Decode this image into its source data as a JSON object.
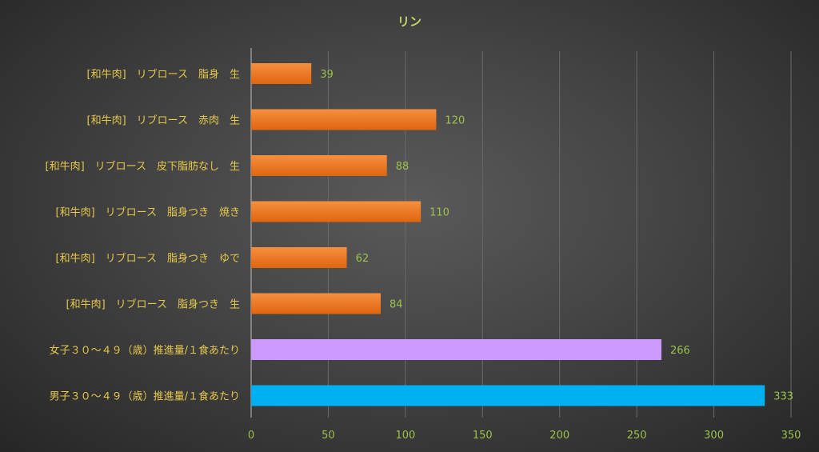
{
  "chart_data": {
    "type": "bar",
    "orientation": "horizontal",
    "title": "リン",
    "categories": [
      "[和牛肉]　リブロース　脂身　生",
      "[和牛肉]　リブロース　赤肉　生",
      "[和牛肉]　リブロース　皮下脂肪なし　生",
      "[和牛肉]　リブロース　脂身つき　焼き",
      "[和牛肉]　リブロース　脂身つき　ゆで",
      "[和牛肉]　リブロース　脂身つき　生",
      "女子３０～４９（歳）推進量/１食あたり",
      "男子３０～４９（歳）推進量/１食あたり"
    ],
    "values": [
      39,
      120,
      88,
      110,
      62,
      84,
      266,
      333
    ],
    "bar_colors": [
      "#f07a22",
      "#f07a22",
      "#f07a22",
      "#f07a22",
      "#f07a22",
      "#f07a22",
      "#cc99ff",
      "#00b0f0"
    ],
    "xlim": [
      0,
      350
    ],
    "xticks": [
      0,
      50,
      100,
      150,
      200,
      250,
      300,
      350
    ],
    "grid": true,
    "legend": "none"
  }
}
